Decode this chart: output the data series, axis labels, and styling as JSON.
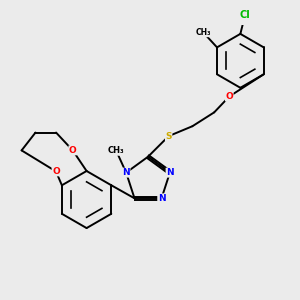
{
  "bg_color": "#ebebeb",
  "bond_color": "#000000",
  "bond_width": 1.4,
  "atom_colors": {
    "N": "#0000ff",
    "O": "#ff0000",
    "S": "#ccaa00",
    "Cl": "#00bb00",
    "C": "#000000"
  },
  "font_size": 6.5
}
